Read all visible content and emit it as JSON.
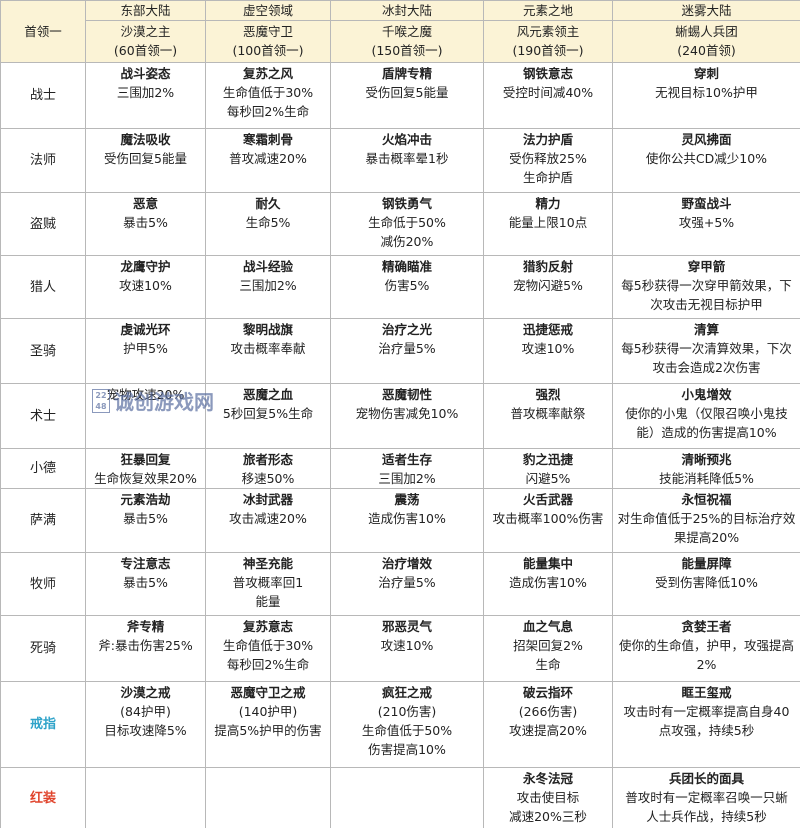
{
  "header": {
    "corner": "首领一",
    "regions": [
      "东部大陆",
      "虚空领域",
      "冰封大陆",
      "元素之地",
      "迷雾大陆"
    ],
    "bosses": [
      {
        "name": "沙漠之主",
        "count": "(60首领一)"
      },
      {
        "name": "恶魔守卫",
        "count": "(100首领一)"
      },
      {
        "name": "千喉之魔",
        "count": "(150首领一)"
      },
      {
        "name": "风元素领主",
        "count": "(190首领一)"
      },
      {
        "name": "蜥蜴人兵团",
        "count": "(240首领)"
      }
    ]
  },
  "rows": [
    {
      "label": "战士",
      "cells": [
        {
          "title": "战斗姿态",
          "lines": [
            "三围加2%"
          ]
        },
        {
          "title": "复苏之风",
          "lines": [
            "生命值低于30%",
            "每秒回2%生命"
          ]
        },
        {
          "title": "盾牌专精",
          "lines": [
            "受伤回复5能量"
          ]
        },
        {
          "title": "钢铁意志",
          "lines": [
            "受控时间减40%"
          ]
        },
        {
          "title": "穿刺",
          "lines": [
            "无视目标10%护甲"
          ]
        }
      ]
    },
    {
      "label": "法师",
      "cells": [
        {
          "title": "魔法吸收",
          "lines": [
            "受伤回复5能量"
          ]
        },
        {
          "title": "寒霜刺骨",
          "lines": [
            "普攻减速20%"
          ]
        },
        {
          "title": "火焰冲击",
          "lines": [
            "暴击概率晕1秒"
          ]
        },
        {
          "title": "法力护盾",
          "lines": [
            "受伤释放25%",
            "生命护盾"
          ]
        },
        {
          "title": "灵风拂面",
          "lines": [
            "使你公共CD减少10%"
          ]
        }
      ]
    },
    {
      "label": "盗贼",
      "cells": [
        {
          "title": "恶意",
          "lines": [
            "暴击5%"
          ]
        },
        {
          "title": "耐久",
          "lines": [
            "生命5%"
          ]
        },
        {
          "title": "钢铁勇气",
          "lines": [
            "生命低于50%",
            "减伤20%"
          ]
        },
        {
          "title": "精力",
          "lines": [
            "能量上限10点"
          ]
        },
        {
          "title": "野蛮战斗",
          "lines": [
            "攻强+5%"
          ]
        }
      ]
    },
    {
      "label": "猎人",
      "cells": [
        {
          "title": "龙鹰守护",
          "lines": [
            "攻速10%"
          ]
        },
        {
          "title": "战斗经验",
          "lines": [
            "三围加2%"
          ]
        },
        {
          "title": "精确瞄准",
          "lines": [
            "伤害5%"
          ]
        },
        {
          "title": "猎豹反射",
          "lines": [
            "宠物闪避5%"
          ]
        },
        {
          "title": "穿甲箭",
          "lines": [
            "每5秒获得一次穿甲箭效果，下",
            "次攻击无视目标护甲"
          ]
        }
      ]
    },
    {
      "label": "圣骑",
      "cells": [
        {
          "title": "虔诚光环",
          "lines": [
            "护甲5%"
          ]
        },
        {
          "title": "黎明战旗",
          "lines": [
            "攻击概率奉献"
          ]
        },
        {
          "title": "治疗之光",
          "lines": [
            "治疗量5%"
          ]
        },
        {
          "title": "迅捷惩戒",
          "lines": [
            "攻速10%"
          ]
        },
        {
          "title": "清算",
          "lines": [
            "每5秒获得一次清算效果，下次",
            "攻击会造成2次伤害"
          ]
        }
      ]
    },
    {
      "label": "术士",
      "cells": [
        {
          "lines": [
            "宠物攻速20%"
          ]
        },
        {
          "title": "恶魔之血",
          "lines": [
            "5秒回复5%生命"
          ]
        },
        {
          "title": "恶魔韧性",
          "lines": [
            "宠物伤害减免10%"
          ]
        },
        {
          "title": "强烈",
          "lines": [
            "普攻概率献祭"
          ]
        },
        {
          "title": "小鬼增效",
          "lines": [
            "使你的小鬼（仅限召唤小鬼技",
            "能）造成的伤害提高10%"
          ]
        }
      ]
    },
    {
      "label": "小德",
      "cells": [
        {
          "title": "狂暴回复",
          "lines": [
            "生命恢复效果20%"
          ]
        },
        {
          "title": "旅者形态",
          "lines": [
            "移速50%"
          ]
        },
        {
          "title": "适者生存",
          "lines": [
            "三围加2%"
          ]
        },
        {
          "title": "豹之迅捷",
          "lines": [
            "闪避5%"
          ]
        },
        {
          "title": "清晰预兆",
          "lines": [
            "技能消耗降低5%"
          ]
        }
      ]
    },
    {
      "label": "萨满",
      "cells": [
        {
          "title": "元素浩劫",
          "lines": [
            "暴击5%"
          ]
        },
        {
          "title": "冰封武器",
          "lines": [
            "攻击减速20%"
          ]
        },
        {
          "title": "震荡",
          "lines": [
            "造成伤害10%"
          ]
        },
        {
          "title": "火舌武器",
          "lines": [
            "攻击概率100%伤害"
          ]
        },
        {
          "title": "永恒祝福",
          "lines": [
            "对生命值低于25%的目标治疗效",
            "果提高20%"
          ]
        }
      ]
    },
    {
      "label": "牧师",
      "cells": [
        {
          "title": "专注意志",
          "lines": [
            "暴击5%"
          ]
        },
        {
          "title": "神圣充能",
          "lines": [
            "普攻概率回1",
            "能量"
          ]
        },
        {
          "title": "治疗增效",
          "lines": [
            "治疗量5%"
          ]
        },
        {
          "title": "能量集中",
          "lines": [
            "造成伤害10%"
          ]
        },
        {
          "title": "能量屏障",
          "lines": [
            "受到伤害降低10%"
          ]
        }
      ]
    },
    {
      "label": "死骑",
      "cells": [
        {
          "title": "斧专精",
          "lines": [
            "斧:暴击伤害25%"
          ]
        },
        {
          "title": "复苏意志",
          "lines": [
            "生命值低于30%",
            "每秒回2%生命"
          ]
        },
        {
          "title": "邪恶灵气",
          "lines": [
            "攻速10%"
          ]
        },
        {
          "title": "血之气息",
          "lines": [
            "招架回复2%",
            "生命"
          ]
        },
        {
          "title": "贪婪王者",
          "lines": [
            "使你的生命值，护甲，攻强提高",
            "2%"
          ]
        }
      ]
    },
    {
      "label": "戒指",
      "cells": [
        {
          "title": "沙漠之戒",
          "lines": [
            "(84护甲)",
            "目标攻速降5%"
          ]
        },
        {
          "title": "恶魔守卫之戒",
          "lines": [
            "(140护甲)",
            "提高5%护甲的伤害"
          ]
        },
        {
          "title": "疯狂之戒",
          "lines": [
            "(210伤害)",
            "生命值低于50%",
            "伤害提高10%"
          ]
        },
        {
          "title": "破云指环",
          "lines": [
            "(266伤害)",
            "攻速提高20%"
          ]
        },
        {
          "title": "眶王玺戒",
          "lines": [
            "攻击时有一定概率提高自身40",
            "点攻强，持续5秒"
          ]
        }
      ]
    },
    {
      "label": "红装",
      "cells": [
        null,
        null,
        null,
        {
          "title": "永冬法冠",
          "lines": [
            "攻击使目标",
            "减速20%三秒"
          ]
        },
        {
          "title": "兵团长的面具",
          "lines": [
            "普攻时有一定概率召唤一只蜥",
            "人士兵作战，持续5秒"
          ]
        }
      ]
    }
  ],
  "watermark": "诚创游戏网"
}
